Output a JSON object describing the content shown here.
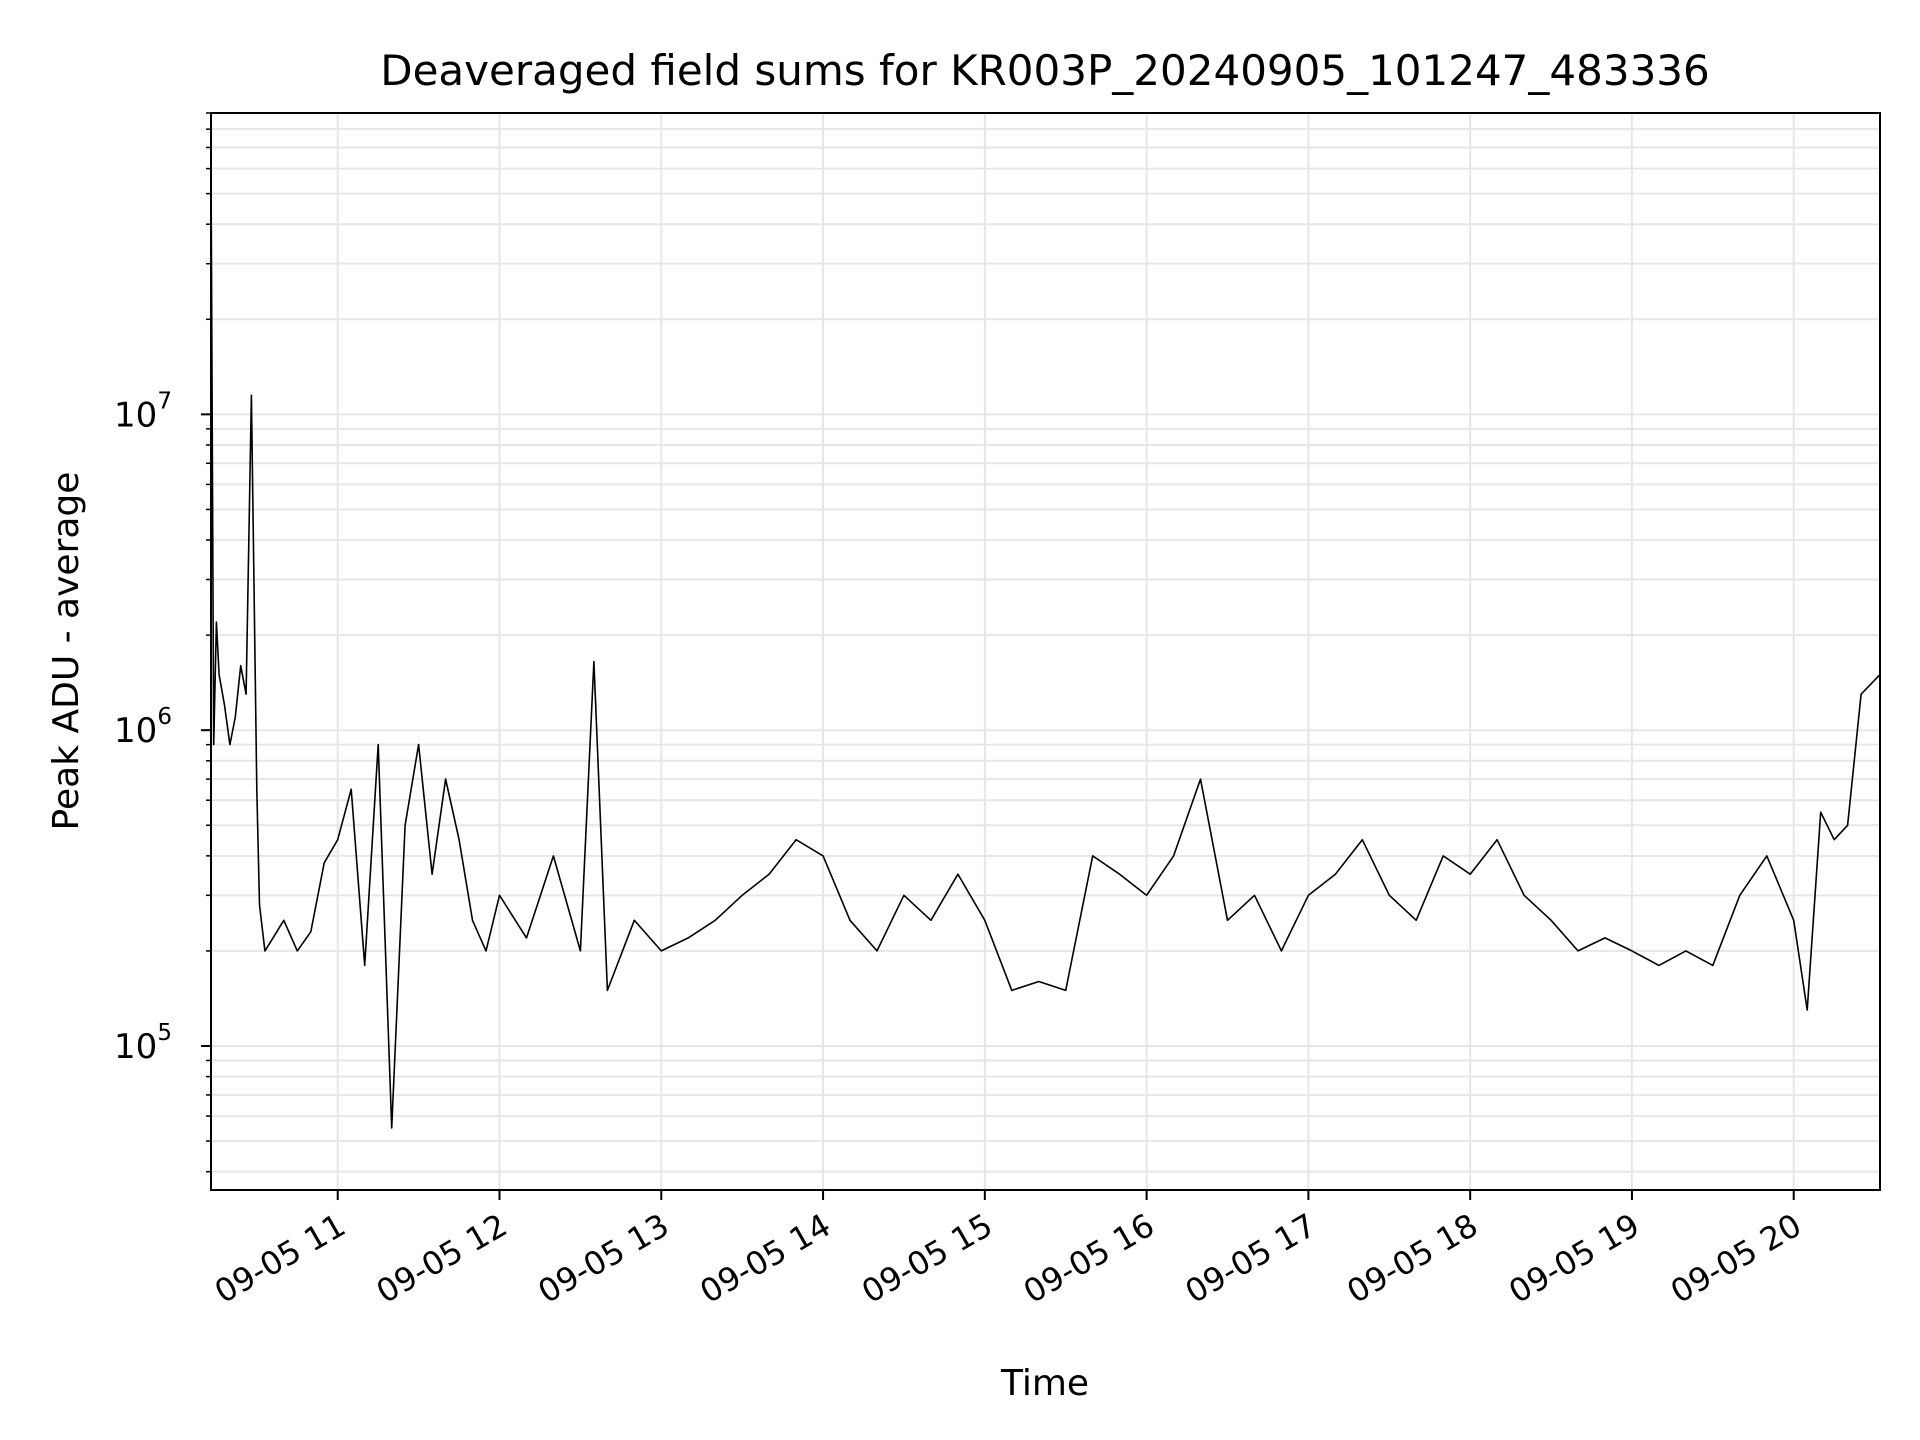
{
  "chart_data": {
    "type": "line",
    "title": "Deaveraged field sums for KR003P_20240905_101247_483336",
    "xlabel": "Time",
    "ylabel": "Peak ADU - average",
    "yscale": "log",
    "ylim": [
      35000,
      90000000
    ],
    "xlim": [
      "09-05 10:13",
      "09-05 20:32"
    ],
    "grid": true,
    "line_color": "#000000",
    "grid_color": "#e6e6e6",
    "x_ticks": [
      {
        "value": "09-05 11:00",
        "label": "09-05 11"
      },
      {
        "value": "09-05 12:00",
        "label": "09-05 12"
      },
      {
        "value": "09-05 13:00",
        "label": "09-05 13"
      },
      {
        "value": "09-05 14:00",
        "label": "09-05 14"
      },
      {
        "value": "09-05 15:00",
        "label": "09-05 15"
      },
      {
        "value": "09-05 16:00",
        "label": "09-05 16"
      },
      {
        "value": "09-05 17:00",
        "label": "09-05 17"
      },
      {
        "value": "09-05 18:00",
        "label": "09-05 18"
      },
      {
        "value": "09-05 19:00",
        "label": "09-05 19"
      },
      {
        "value": "09-05 20:00",
        "label": "09-05 20"
      }
    ],
    "y_ticks": [
      {
        "value": 100000,
        "base": "10",
        "exp": "5"
      },
      {
        "value": 1000000,
        "base": "10",
        "exp": "6"
      },
      {
        "value": 10000000,
        "base": "10",
        "exp": "7"
      }
    ],
    "series": [
      {
        "x": [
          "09-05 10:13",
          "09-05 10:14",
          "09-05 10:15",
          "09-05 10:16",
          "09-05 10:18",
          "09-05 10:20",
          "09-05 10:22",
          "09-05 10:24",
          "09-05 10:26",
          "09-05 10:28",
          "09-05 10:30",
          "09-05 10:31",
          "09-05 10:33",
          "09-05 10:36",
          "09-05 10:40",
          "09-05 10:45",
          "09-05 10:50",
          "09-05 10:55",
          "09-05 11:00",
          "09-05 11:05",
          "09-05 11:10",
          "09-05 11:15",
          "09-05 11:20",
          "09-05 11:25",
          "09-05 11:30",
          "09-05 11:35",
          "09-05 11:40",
          "09-05 11:45",
          "09-05 11:50",
          "09-05 11:55",
          "09-05 12:00",
          "09-05 12:10",
          "09-05 12:20",
          "09-05 12:30",
          "09-05 12:35",
          "09-05 12:40",
          "09-05 12:50",
          "09-05 13:00",
          "09-05 13:10",
          "09-05 13:20",
          "09-05 13:30",
          "09-05 13:40",
          "09-05 13:50",
          "09-05 14:00",
          "09-05 14:10",
          "09-05 14:20",
          "09-05 14:30",
          "09-05 14:40",
          "09-05 14:50",
          "09-05 15:00",
          "09-05 15:10",
          "09-05 15:20",
          "09-05 15:30",
          "09-05 15:40",
          "09-05 15:50",
          "09-05 16:00",
          "09-05 16:10",
          "09-05 16:20",
          "09-05 16:30",
          "09-05 16:40",
          "09-05 16:50",
          "09-05 17:00",
          "09-05 17:10",
          "09-05 17:20",
          "09-05 17:30",
          "09-05 17:40",
          "09-05 17:50",
          "09-05 18:00",
          "09-05 18:10",
          "09-05 18:20",
          "09-05 18:30",
          "09-05 18:40",
          "09-05 18:50",
          "09-05 19:00",
          "09-05 19:10",
          "09-05 19:20",
          "09-05 19:30",
          "09-05 19:40",
          "09-05 19:50",
          "09-05 20:00",
          "09-05 20:05",
          "09-05 20:10",
          "09-05 20:15",
          "09-05 20:20",
          "09-05 20:25",
          "09-05 20:32"
        ],
        "y": [
          65000000,
          900000,
          2200000,
          1500000,
          1200000,
          900000,
          1100000,
          1600000,
          1300000,
          11500000,
          650000,
          280000,
          200000,
          220000,
          250000,
          200000,
          230000,
          380000,
          450000,
          650000,
          180000,
          900000,
          55000,
          500000,
          900000,
          350000,
          700000,
          450000,
          250000,
          200000,
          300000,
          220000,
          400000,
          200000,
          1650000,
          150000,
          250000,
          200000,
          220000,
          250000,
          300000,
          350000,
          450000,
          400000,
          250000,
          200000,
          300000,
          250000,
          350000,
          250000,
          150000,
          160000,
          150000,
          400000,
          350000,
          300000,
          400000,
          700000,
          250000,
          300000,
          200000,
          300000,
          350000,
          450000,
          300000,
          250000,
          400000,
          350000,
          450000,
          300000,
          250000,
          200000,
          220000,
          200000,
          180000,
          200000,
          180000,
          300000,
          400000,
          250000,
          130000,
          550000,
          450000,
          500000,
          1300000,
          1500000
        ]
      }
    ]
  }
}
